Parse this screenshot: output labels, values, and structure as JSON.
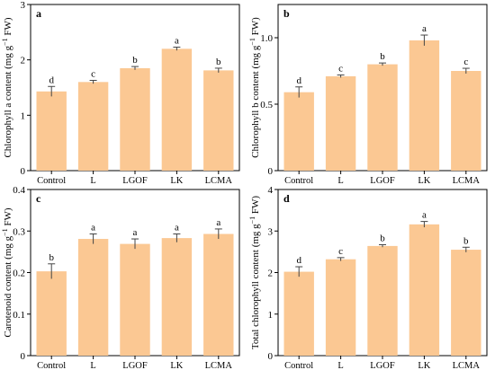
{
  "colors": {
    "bar": "#fbc893",
    "axis": "#000000",
    "error": "#444444"
  },
  "chart_data": [
    {
      "type": "bar",
      "panel": "a",
      "categories": [
        "Control",
        "L",
        "LGOF",
        "LK",
        "LCMA"
      ],
      "values": [
        1.43,
        1.6,
        1.85,
        2.2,
        1.81
      ],
      "errors": [
        0.09,
        0.03,
        0.03,
        0.03,
        0.04
      ],
      "letters": [
        "d",
        "c",
        "b",
        "a",
        "b"
      ],
      "ylabel_pre": "Chlorophyll a content (mg g",
      "ylabel_sup": "−1",
      "ylabel_post": " FW)",
      "ylim": [
        0,
        3
      ],
      "yticks": [
        0,
        1,
        2,
        3
      ],
      "ytick_labels": [
        "0",
        "1",
        "2",
        "3"
      ],
      "grid": false
    },
    {
      "type": "bar",
      "panel": "b",
      "categories": [
        "Control",
        "L",
        "LGOF",
        "LK",
        "LCMA"
      ],
      "values": [
        0.59,
        0.71,
        0.8,
        0.98,
        0.75
      ],
      "errors": [
        0.04,
        0.01,
        0.01,
        0.04,
        0.02
      ],
      "letters": [
        "d",
        "c",
        "b",
        "a",
        "c"
      ],
      "ylabel_pre": "Chlorophyll b content (mg g",
      "ylabel_sup": "−1",
      "ylabel_post": " FW)",
      "ylim": [
        0,
        1.25
      ],
      "yticks": [
        0,
        0.5,
        1.0
      ],
      "ytick_labels": [
        "0",
        "0.5",
        "1.0"
      ],
      "grid": false
    },
    {
      "type": "bar",
      "panel": "c",
      "categories": [
        "Control",
        "L",
        "LGOF",
        "LK",
        "LCMA"
      ],
      "values": [
        0.203,
        0.281,
        0.269,
        0.283,
        0.293
      ],
      "errors": [
        0.018,
        0.012,
        0.012,
        0.01,
        0.012
      ],
      "letters": [
        "b",
        "a",
        "a",
        "a",
        "a"
      ],
      "ylabel_pre": "Carotenoid  content (mg g",
      "ylabel_sup": "−1",
      "ylabel_post": " FW)",
      "ylim": [
        0,
        0.4
      ],
      "yticks": [
        0,
        0.1,
        0.2,
        0.3,
        0.4
      ],
      "ytick_labels": [
        "0",
        "0.1",
        "0.2",
        "0.3",
        "0.4"
      ],
      "grid": false
    },
    {
      "type": "bar",
      "panel": "d",
      "categories": [
        "Control",
        "L",
        "LGOF",
        "LK",
        "LCMA"
      ],
      "values": [
        2.02,
        2.32,
        2.64,
        3.16,
        2.55
      ],
      "errors": [
        0.12,
        0.04,
        0.03,
        0.07,
        0.06
      ],
      "letters": [
        "d",
        "c",
        "b",
        "a",
        "b"
      ],
      "ylabel_pre": "Total chlorophyll content (mg g",
      "ylabel_sup": "−1",
      "ylabel_post": " FW)",
      "ylim": [
        0,
        4
      ],
      "yticks": [
        0,
        1,
        2,
        3,
        4
      ],
      "ytick_labels": [
        "0",
        "1",
        "2",
        "3",
        "4"
      ],
      "grid": false
    }
  ]
}
